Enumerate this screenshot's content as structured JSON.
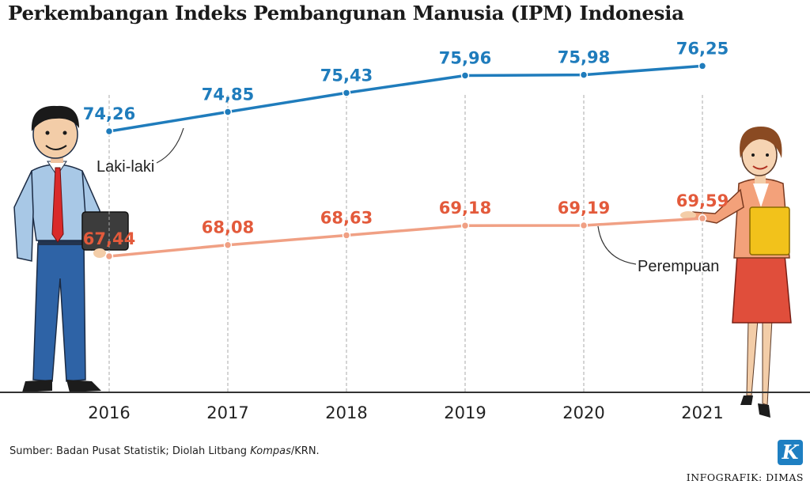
{
  "title": "Perkembangan Indeks Pembangunan Manusia (IPM) Indonesia",
  "source": {
    "prefix": "Sumber: Badan Pusat Statistik; Diolah Litbang ",
    "italic": "Kompas",
    "suffix": "/KRN."
  },
  "credit": "INFOGRAFIK: DIMAS",
  "logo_letter": "K",
  "colors": {
    "male": "#1f7cbc",
    "female_line": "#f0a084",
    "female_label": "#e35a3b",
    "axis": "#333333",
    "grid": "#aaaaaa"
  },
  "chart_data": {
    "type": "line",
    "categories": [
      "2016",
      "2017",
      "2018",
      "2019",
      "2020",
      "2021"
    ],
    "series": [
      {
        "name": "Laki-laki",
        "values": [
          74.26,
          74.85,
          75.43,
          75.96,
          75.98,
          76.25
        ],
        "labels": [
          "74,26",
          "74,85",
          "75,43",
          "75,96",
          "75,98",
          "76,25"
        ]
      },
      {
        "name": "Perempuan",
        "values": [
          67.44,
          68.08,
          68.63,
          69.18,
          69.19,
          69.59
        ],
        "labels": [
          "67,44",
          "68,08",
          "68,63",
          "69,18",
          "69,19",
          "69,59"
        ]
      }
    ],
    "grid": "vertical dashed lines at each year",
    "legend": "inline labels next to each line"
  }
}
